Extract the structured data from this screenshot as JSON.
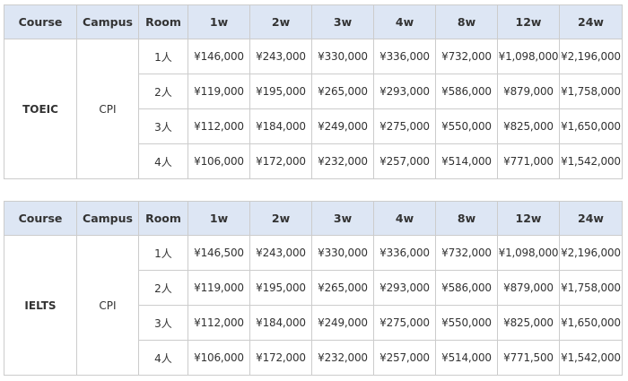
{
  "headers": [
    "Course",
    "Campus",
    "Room",
    "1w",
    "2w",
    "3w",
    "4w",
    "8w",
    "12w",
    "24w"
  ],
  "tables": [
    {
      "course": "TOEIC",
      "campus": "CPI",
      "rows": [
        {
          "room": "1人",
          "prices": [
            "¥146,000",
            "¥243,000",
            "¥330,000",
            "¥336,000",
            "¥732,000",
            "¥1,098,000",
            "¥2,196,000"
          ]
        },
        {
          "room": "2人",
          "prices": [
            "¥119,000",
            "¥195,000",
            "¥265,000",
            "¥293,000",
            "¥586,000",
            "¥879,000",
            "¥1,758,000"
          ]
        },
        {
          "room": "3人",
          "prices": [
            "¥112,000",
            "¥184,000",
            "¥249,000",
            "¥275,000",
            "¥550,000",
            "¥825,000",
            "¥1,650,000"
          ]
        },
        {
          "room": "4人",
          "prices": [
            "¥106,000",
            "¥172,000",
            "¥232,000",
            "¥257,000",
            "¥514,000",
            "¥771,000",
            "¥1,542,000"
          ]
        }
      ]
    },
    {
      "course": "IELTS",
      "campus": "CPI",
      "rows": [
        {
          "room": "1人",
          "prices": [
            "¥146,500",
            "¥243,000",
            "¥330,000",
            "¥336,000",
            "¥732,000",
            "¥1,098,000",
            "¥2,196,000"
          ]
        },
        {
          "room": "2人",
          "prices": [
            "¥119,000",
            "¥195,000",
            "¥265,000",
            "¥293,000",
            "¥586,000",
            "¥879,000",
            "¥1,758,000"
          ]
        },
        {
          "room": "3人",
          "prices": [
            "¥112,000",
            "¥184,000",
            "¥249,000",
            "¥275,000",
            "¥550,000",
            "¥825,000",
            "¥1,650,000"
          ]
        },
        {
          "room": "4人",
          "prices": [
            "¥106,000",
            "¥172,000",
            "¥232,000",
            "¥257,000",
            "¥514,000",
            "¥771,500",
            "¥1,542,000"
          ]
        }
      ]
    }
  ]
}
